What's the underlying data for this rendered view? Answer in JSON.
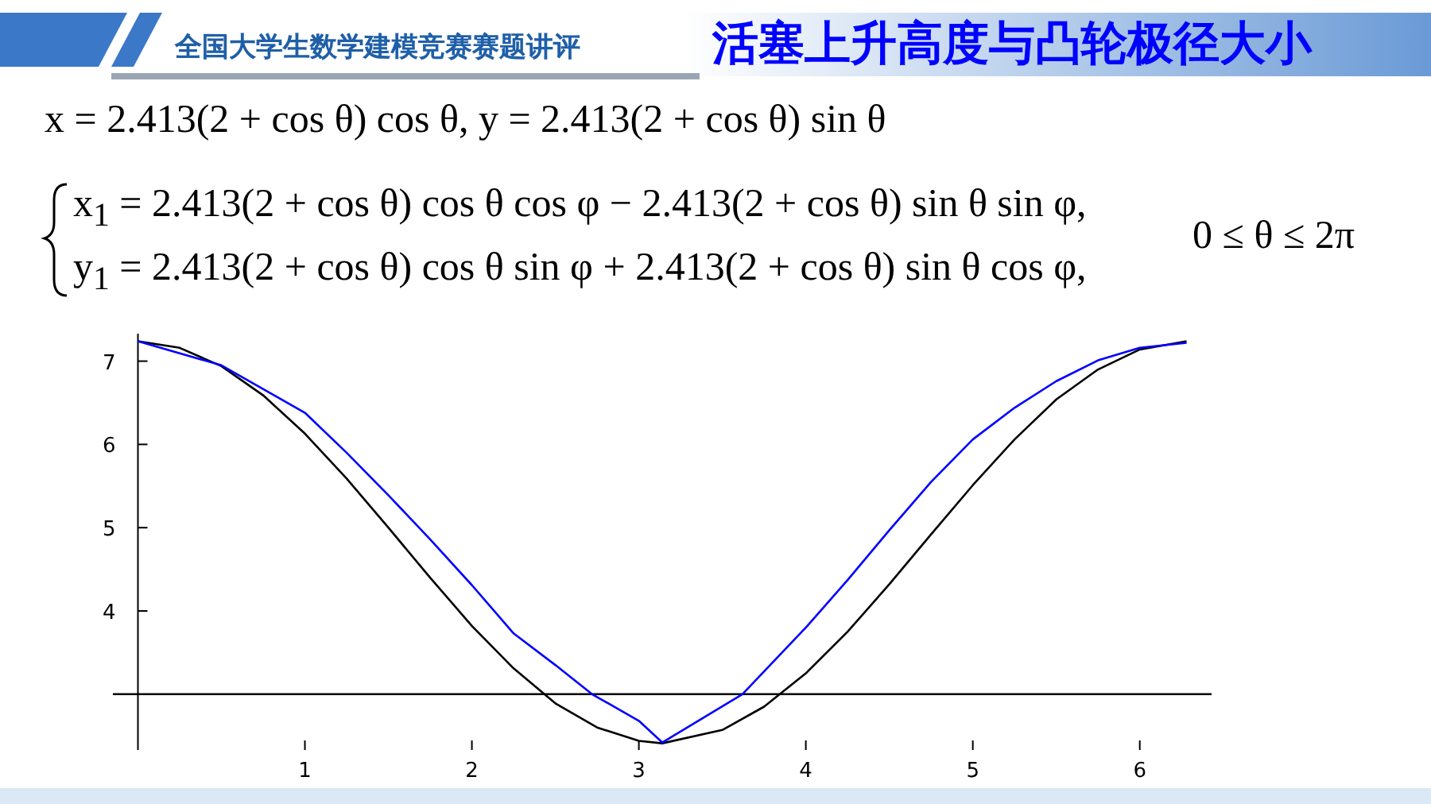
{
  "chart_data": {
    "type": "line",
    "title": "活塞上升高度与凸轮极径大小",
    "subtitle": "全国大学生数学建模竞赛赛题讲评",
    "annotations": [
      "x = 2.413(2 + cos θ) cos θ, y = 2.413(2 + cos θ) sin θ",
      "x$_{1}$ = 2.413(2 + cos θ) cos θ cos φ − 2.413(2 + cos θ) sin θ sin φ,",
      "y$_{1}$ = 2.413(2 + cos θ) cos θ sin φ + 2.413(2 + cos θ) sin θ cos φ,",
      "0 ≤ θ ≤ 2π"
    ],
    "series": [
      {
        "color": "#000000",
        "x": [
          0,
          0.25,
          0.5,
          0.75,
          1,
          1.25,
          1.5,
          1.75,
          2,
          2.25,
          2.5,
          2.75,
          3,
          3.14,
          3.5,
          3.75,
          4,
          4.25,
          4.5,
          4.75,
          5,
          5.25,
          5.5,
          5.75,
          6,
          6.28
        ],
        "values": [
          7.24,
          7.16,
          6.94,
          6.59,
          6.13,
          5.59,
          5.0,
          4.4,
          3.82,
          3.31,
          2.89,
          2.6,
          2.44,
          2.41,
          2.57,
          2.85,
          3.25,
          3.75,
          4.32,
          4.92,
          5.51,
          6.06,
          6.54,
          6.9,
          7.14,
          7.24
        ]
      },
      {
        "color": "#0000ff",
        "x": [
          0,
          0.5,
          1,
          1.25,
          1.5,
          1.75,
          2,
          2.25,
          2.5,
          2.72,
          3,
          3.14,
          3.62,
          4,
          4.25,
          4.5,
          4.75,
          5,
          5.25,
          5.5,
          5.75,
          6,
          6.28
        ],
        "values": [
          7.24,
          6.95,
          6.38,
          5.9,
          5.39,
          4.86,
          4.31,
          3.73,
          3.35,
          3.0,
          2.68,
          2.42,
          3.0,
          3.8,
          4.37,
          4.97,
          5.55,
          6.06,
          6.44,
          6.76,
          7.01,
          7.16,
          7.22
        ]
      }
    ],
    "xlim": [
      -0.15,
      6.43
    ],
    "ylim": [
      2.33,
      7.33
    ],
    "xticks": [
      1,
      2,
      3,
      4,
      5,
      6
    ],
    "yticks": [
      4,
      5,
      6,
      7
    ],
    "ref_lines": [
      {
        "axis": "y",
        "value": 3,
        "color": "#000000"
      }
    ]
  }
}
